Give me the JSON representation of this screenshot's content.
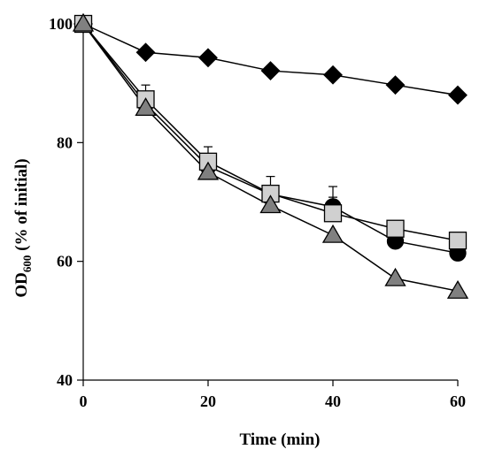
{
  "chart_data": {
    "type": "line",
    "title": "",
    "xlabel": "Time (min)",
    "ylabel_main": "OD",
    "ylabel_sub": "600",
    "ylabel_rest": " (% of initial)",
    "xlim": [
      0,
      60
    ],
    "ylim": [
      40,
      100
    ],
    "xticks": [
      0,
      20,
      40,
      60
    ],
    "yticks": [
      40,
      60,
      80,
      100
    ],
    "grid": false,
    "legend": "none",
    "x": [
      0,
      10,
      20,
      30,
      40,
      50,
      60
    ],
    "series": [
      {
        "marker": "diamond",
        "color": "#000000",
        "values": [
          100,
          95.2,
          94.3,
          92.1,
          91.4,
          89.7,
          88.0
        ],
        "errors": [
          0,
          0,
          0,
          0,
          0,
          0,
          0
        ]
      },
      {
        "marker": "circle",
        "color": "#000000",
        "values": [
          100,
          86.5,
          76.0,
          71.3,
          69.2,
          63.4,
          61.4
        ],
        "errors": [
          0,
          0.8,
          1.0,
          1.0,
          1.6,
          0,
          0
        ]
      },
      {
        "marker": "square",
        "color": "#d0d0d0",
        "values": [
          100,
          87.3,
          76.8,
          71.4,
          68.1,
          65.5,
          63.5
        ],
        "errors": [
          0,
          2.4,
          2.5,
          2.9,
          4.5,
          0,
          0
        ]
      },
      {
        "marker": "triangle",
        "color": "#808080",
        "values": [
          100,
          85.8,
          75.0,
          69.4,
          64.4,
          57.1,
          55.0
        ],
        "errors": [
          0,
          0,
          0,
          0,
          0,
          0,
          0
        ]
      }
    ]
  }
}
